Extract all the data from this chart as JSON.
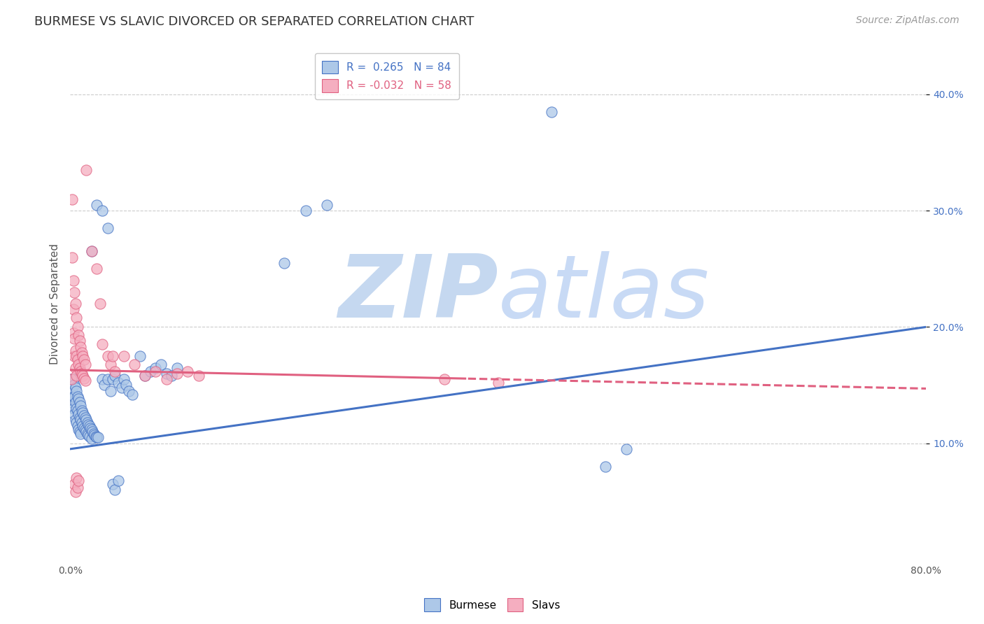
{
  "title": "BURMESE VS SLAVIC DIVORCED OR SEPARATED CORRELATION CHART",
  "source": "Source: ZipAtlas.com",
  "ylabel": "Divorced or Separated",
  "legend_burmese_label": "Burmese",
  "legend_slavs_label": "Slavs",
  "r_burmese": 0.265,
  "n_burmese": 84,
  "r_slavs": -0.032,
  "n_slavs": 58,
  "burmese_color": "#adc8e8",
  "slavs_color": "#f5aec0",
  "burmese_line_color": "#4472c4",
  "slavs_line_color": "#e06080",
  "watermark_zip_color": "#c5d8f0",
  "watermark_atlas_color": "#c8daf5",
  "background_color": "#ffffff",
  "grid_color": "#cccccc",
  "xlim": [
    0.0,
    0.8
  ],
  "ylim": [
    0.0,
    0.44
  ],
  "xtick_labels": [
    "0.0%",
    "",
    "",
    "",
    "",
    "",
    "",
    "",
    "80.0%"
  ],
  "xtick_values": [
    0.0,
    0.1,
    0.2,
    0.3,
    0.4,
    0.5,
    0.6,
    0.7,
    0.8
  ],
  "ytick_labels": [
    "10.0%",
    "20.0%",
    "30.0%",
    "40.0%"
  ],
  "ytick_values": [
    0.1,
    0.2,
    0.3,
    0.4
  ],
  "burmese_line_x0": 0.0,
  "burmese_line_y0": 0.095,
  "burmese_line_x1": 0.8,
  "burmese_line_y1": 0.2,
  "slavs_line_x0": 0.0,
  "slavs_line_y0": 0.163,
  "slavs_line_x1": 0.5,
  "slavs_line_y1": 0.153,
  "title_fontsize": 13,
  "axis_label_fontsize": 11,
  "tick_fontsize": 10,
  "legend_fontsize": 11,
  "source_fontsize": 10
}
